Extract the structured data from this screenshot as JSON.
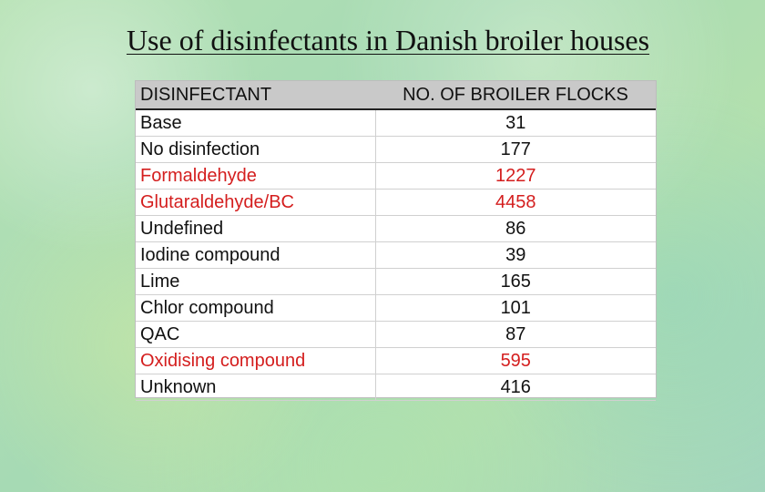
{
  "slide": {
    "title": "Use of disinfectants in Danish broiler houses"
  },
  "table": {
    "headers": {
      "disinfectant": "DISINFECTANT",
      "flocks": "NO. OF BROILER FLOCKS"
    },
    "highlight_color": "#d41e1e",
    "rows": [
      {
        "name": "Base",
        "value": "31",
        "highlight": false
      },
      {
        "name": "No disinfection",
        "value": "177",
        "highlight": false
      },
      {
        "name": "Formaldehyde",
        "value": "1227",
        "highlight": true
      },
      {
        "name": "Glutaraldehyde/BC",
        "value": "4458",
        "highlight": true
      },
      {
        "name": "Undefined",
        "value": "86",
        "highlight": false
      },
      {
        "name": "Iodine compound",
        "value": "39",
        "highlight": false
      },
      {
        "name": "Lime",
        "value": "165",
        "highlight": false
      },
      {
        "name": "Chlor compound",
        "value": "101",
        "highlight": false
      },
      {
        "name": "QAC",
        "value": "87",
        "highlight": false
      },
      {
        "name": "Oxidising compound",
        "value": "595",
        "highlight": true
      },
      {
        "name": "Unknown",
        "value": "416",
        "highlight": false
      }
    ]
  }
}
